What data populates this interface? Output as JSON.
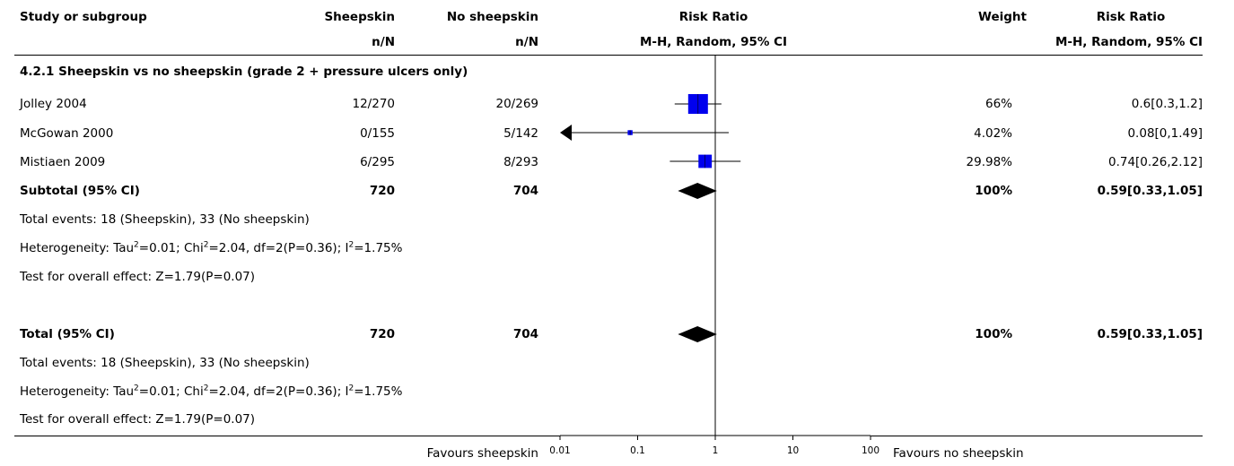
{
  "header": {
    "col_study": "Study or subgroup",
    "col_exp": "Sheepskin",
    "col_ctrl": "No sheepskin",
    "col_rr_plot": "Risk Ratio",
    "col_weight": "Weight",
    "col_rr_text": "Risk Ratio",
    "sub_exp": "n/N",
    "sub_ctrl": "n/N",
    "sub_rr_plot": "M-H, Random, 95% CI",
    "sub_rr_text": "M-H, Random, 95% CI"
  },
  "subgroup": {
    "title": "4.2.1 Sheepskin vs no sheepskin (grade 2 + pressure ulcers only)",
    "studies": [
      {
        "name": "Jolley 2004",
        "exp": "12/270",
        "ctrl": "20/269",
        "weight": "66%",
        "rr_text": "0.6[0.3,1.2]"
      },
      {
        "name": "McGowan 2000",
        "exp": "0/155",
        "ctrl": "5/142",
        "weight": "4.02%",
        "rr_text": "0.08[0,1.49]"
      },
      {
        "name": "Mistiaen 2009",
        "exp": "6/295",
        "ctrl": "8/293",
        "weight": "29.98%",
        "rr_text": "0.74[0.26,2.12]"
      }
    ],
    "subtotal": {
      "label": "Subtotal (95% CI)",
      "exp": "720",
      "ctrl": "704",
      "weight": "100%",
      "rr_text": "0.59[0.33,1.05]"
    },
    "events": "Total events: 18 (Sheepskin), 33 (No sheepskin)",
    "hetero_a": "Heterogeneity: Tau",
    "hetero_b": "=0.01; Chi",
    "hetero_c": "=2.04, df=2(P=0.36); I",
    "hetero_d": "=1.75%",
    "overall": "Test for overall effect: Z=1.79(P=0.07)"
  },
  "total": {
    "label": "Total (95% CI)",
    "exp": "720",
    "ctrl": "704",
    "weight": "100%",
    "rr_text": "0.59[0.33,1.05]",
    "events": "Total events: 18 (Sheepskin), 33 (No sheepskin)",
    "hetero_a": "Heterogeneity: Tau",
    "hetero_b": "=0.01; Chi",
    "hetero_c": "=2.04, df=2(P=0.36); I",
    "hetero_d": "=1.75%",
    "overall": "Test for overall effect: Z=1.79(P=0.07)"
  },
  "footer": {
    "favours_left": "Favours sheepskin",
    "favours_right": "Favours no sheepskin"
  },
  "chart_data": {
    "type": "forest",
    "scale": "log",
    "xlim": [
      0.01,
      100
    ],
    "ticks": [
      {
        "v": 0.01,
        "label": "0.01"
      },
      {
        "v": 0.1,
        "label": "0.1"
      },
      {
        "v": 1,
        "label": "1"
      },
      {
        "v": 10,
        "label": "10"
      },
      {
        "v": 100,
        "label": "100"
      }
    ],
    "null_line": 1,
    "study_color": "#0000ee",
    "studies": [
      {
        "name": "Jolley 2004",
        "rr": 0.6,
        "lo": 0.3,
        "hi": 1.2,
        "weight": 66
      },
      {
        "name": "McGowan 2000",
        "rr": 0.08,
        "lo": 0,
        "hi": 1.49,
        "weight": 4.02
      },
      {
        "name": "Mistiaen 2009",
        "rr": 0.74,
        "lo": 0.26,
        "hi": 2.12,
        "weight": 29.98
      }
    ],
    "diamonds": [
      {
        "name": "Subtotal (95% CI)",
        "rr": 0.59,
        "lo": 0.33,
        "hi": 1.05
      },
      {
        "name": "Total (95% CI)",
        "rr": 0.59,
        "lo": 0.33,
        "hi": 1.05
      }
    ]
  }
}
